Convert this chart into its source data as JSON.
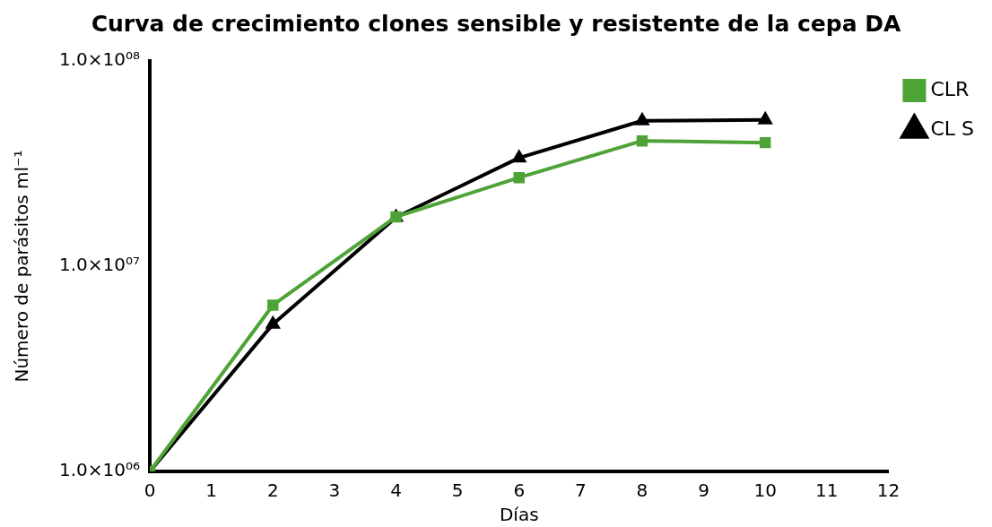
{
  "chart_data": {
    "type": "line",
    "title": "Curva de crecimiento clones sensible y resistente de la cepa DA",
    "xlabel": "Días",
    "ylabel": "Número de parásitos ml⁻¹",
    "x": [
      0,
      2,
      4,
      6,
      8,
      10
    ],
    "series": [
      {
        "name": "CLR",
        "color": "#4ea337",
        "marker": "square",
        "values": [
          1000000,
          6460000,
          17400000,
          27000000,
          40800000,
          40000000
        ]
      },
      {
        "name": "CL S",
        "color": "#000000",
        "marker": "triangle",
        "values": [
          1000000,
          5220000,
          17300000,
          33700000,
          51100000,
          51600000
        ]
      }
    ],
    "log": "y",
    "xlim": [
      0,
      12
    ],
    "xticks": [
      0,
      1,
      2,
      3,
      4,
      5,
      6,
      7,
      8,
      9,
      10,
      11,
      12
    ],
    "ylim": [
      1000000,
      100000000
    ],
    "yticks": [
      {
        "value": 1000000,
        "label": "1.0×10⁰⁶"
      },
      {
        "value": 10000000,
        "label": "1.0×10⁰⁷"
      },
      {
        "value": 100000000,
        "label": "1.0×10⁰⁸"
      }
    ],
    "grid": false,
    "legend": "top right",
    "line_style": "solid"
  }
}
